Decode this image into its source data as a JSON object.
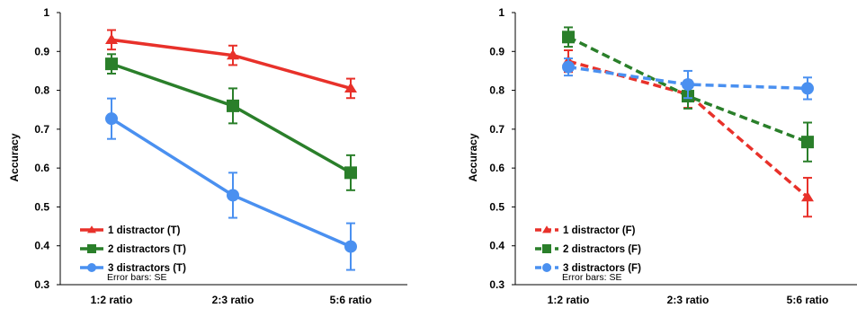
{
  "chart_data": [
    {
      "type": "line",
      "ylabel": "Accuracy",
      "xlabel": "",
      "categories": [
        "1:2 ratio",
        "2:3 ratio",
        "5:6 ratio"
      ],
      "ylim": [
        0.3,
        1
      ],
      "yticks": [
        "0.3",
        "0.4",
        "0.5",
        "0.6",
        "0.7",
        "0.8",
        "0.9",
        "1"
      ],
      "grid": false,
      "legend_position": "bottom-left",
      "note": "Error bars: SE",
      "series": [
        {
          "name": "1 distractor (T)",
          "color": "#e8312a",
          "marker": "triangle",
          "dashed": false,
          "values": [
            0.93,
            0.89,
            0.805
          ],
          "errors": [
            0.025,
            0.025,
            0.025
          ]
        },
        {
          "name": "2 distractors (T)",
          "color": "#2a7f2a",
          "marker": "square",
          "dashed": false,
          "values": [
            0.868,
            0.76,
            0.588
          ],
          "errors": [
            0.025,
            0.045,
            0.045
          ]
        },
        {
          "name": "3 distractors (T)",
          "color": "#4a90f0",
          "marker": "circle",
          "dashed": false,
          "values": [
            0.727,
            0.53,
            0.398
          ],
          "errors": [
            0.052,
            0.058,
            0.06
          ]
        }
      ]
    },
    {
      "type": "line",
      "ylabel": "Accuracy",
      "xlabel": "",
      "categories": [
        "1:2 ratio",
        "2:3 ratio",
        "5:6 ratio"
      ],
      "ylim": [
        0.3,
        1
      ],
      "yticks": [
        "0.3",
        "0.4",
        "0.5",
        "0.6",
        "0.7",
        "0.8",
        "0.9",
        "1"
      ],
      "grid": false,
      "legend_position": "bottom-left",
      "note": "Error bars: SE",
      "series": [
        {
          "name": "1 distractor (F)",
          "color": "#e8312a",
          "marker": "triangle",
          "dashed": true,
          "values": [
            0.875,
            0.79,
            0.525
          ],
          "errors": [
            0.028,
            0.035,
            0.05
          ]
        },
        {
          "name": "2 distractors (F)",
          "color": "#2a7f2a",
          "marker": "square",
          "dashed": true,
          "values": [
            0.937,
            0.785,
            0.667
          ],
          "errors": [
            0.025,
            0.032,
            0.05
          ]
        },
        {
          "name": "3 distractors (F)",
          "color": "#4a90f0",
          "marker": "circle",
          "dashed": true,
          "values": [
            0.86,
            0.815,
            0.805
          ],
          "errors": [
            0.022,
            0.035,
            0.028
          ]
        }
      ]
    }
  ]
}
